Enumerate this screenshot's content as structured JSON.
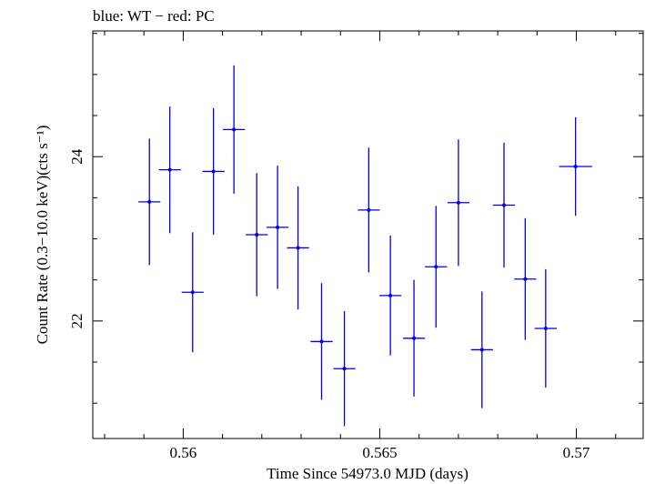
{
  "chart_data": {
    "type": "scatter",
    "title": "blue: WT − red: PC",
    "xlabel": "Time Since 54973.0 MJD (days)",
    "ylabel": "Count Rate (0.3−10.0 keV)(cts s⁻¹)",
    "xlim": [
      0.5577,
      0.5717
    ],
    "ylim": [
      20.57,
      25.53
    ],
    "xticks": [
      {
        "value": 0.56,
        "label": "0.56"
      },
      {
        "value": 0.565,
        "label": "0.565"
      },
      {
        "value": 0.57,
        "label": "0.57"
      }
    ],
    "yticks": [
      {
        "value": 22,
        "label": "22"
      },
      {
        "value": 24,
        "label": "24"
      }
    ],
    "x_minor_step": 0.001,
    "y_minor_step": 0.5,
    "grid": false,
    "series": [
      {
        "color": "#0000e6",
        "points": [
          {
            "x": 0.55914,
            "xerr": 0.00028,
            "y": 23.45,
            "yerr": 0.77
          },
          {
            "x": 0.55966,
            "xerr": 0.00028,
            "y": 23.84,
            "yerr": 0.77
          },
          {
            "x": 0.56024,
            "xerr": 0.00028,
            "y": 22.35,
            "yerr": 0.73
          },
          {
            "x": 0.56077,
            "xerr": 0.00028,
            "y": 23.82,
            "yerr": 0.77
          },
          {
            "x": 0.56129,
            "xerr": 0.00028,
            "y": 24.33,
            "yerr": 0.78
          },
          {
            "x": 0.56187,
            "xerr": 0.00028,
            "y": 23.05,
            "yerr": 0.75
          },
          {
            "x": 0.5624,
            "xerr": 0.00028,
            "y": 23.14,
            "yerr": 0.75
          },
          {
            "x": 0.56292,
            "xerr": 0.00028,
            "y": 22.89,
            "yerr": 0.75
          },
          {
            "x": 0.56352,
            "xerr": 0.00028,
            "y": 21.75,
            "yerr": 0.71
          },
          {
            "x": 0.5641,
            "xerr": 0.00028,
            "y": 21.42,
            "yerr": 0.7
          },
          {
            "x": 0.56472,
            "xerr": 0.00028,
            "y": 23.35,
            "yerr": 0.76
          },
          {
            "x": 0.56527,
            "xerr": 0.00028,
            "y": 22.31,
            "yerr": 0.73
          },
          {
            "x": 0.56587,
            "xerr": 0.00028,
            "y": 21.79,
            "yerr": 0.71
          },
          {
            "x": 0.56643,
            "xerr": 0.00028,
            "y": 22.66,
            "yerr": 0.74
          },
          {
            "x": 0.567,
            "xerr": 0.00028,
            "y": 23.44,
            "yerr": 0.77
          },
          {
            "x": 0.5676,
            "xerr": 0.00028,
            "y": 21.65,
            "yerr": 0.71
          },
          {
            "x": 0.56816,
            "xerr": 0.00028,
            "y": 23.41,
            "yerr": 0.76
          },
          {
            "x": 0.5687,
            "xerr": 0.00028,
            "y": 22.51,
            "yerr": 0.74
          },
          {
            "x": 0.56922,
            "xerr": 0.00028,
            "y": 21.91,
            "yerr": 0.72
          },
          {
            "x": 0.56998,
            "xerr": 0.00042,
            "y": 23.88,
            "yerr": 0.6
          }
        ]
      }
    ]
  }
}
